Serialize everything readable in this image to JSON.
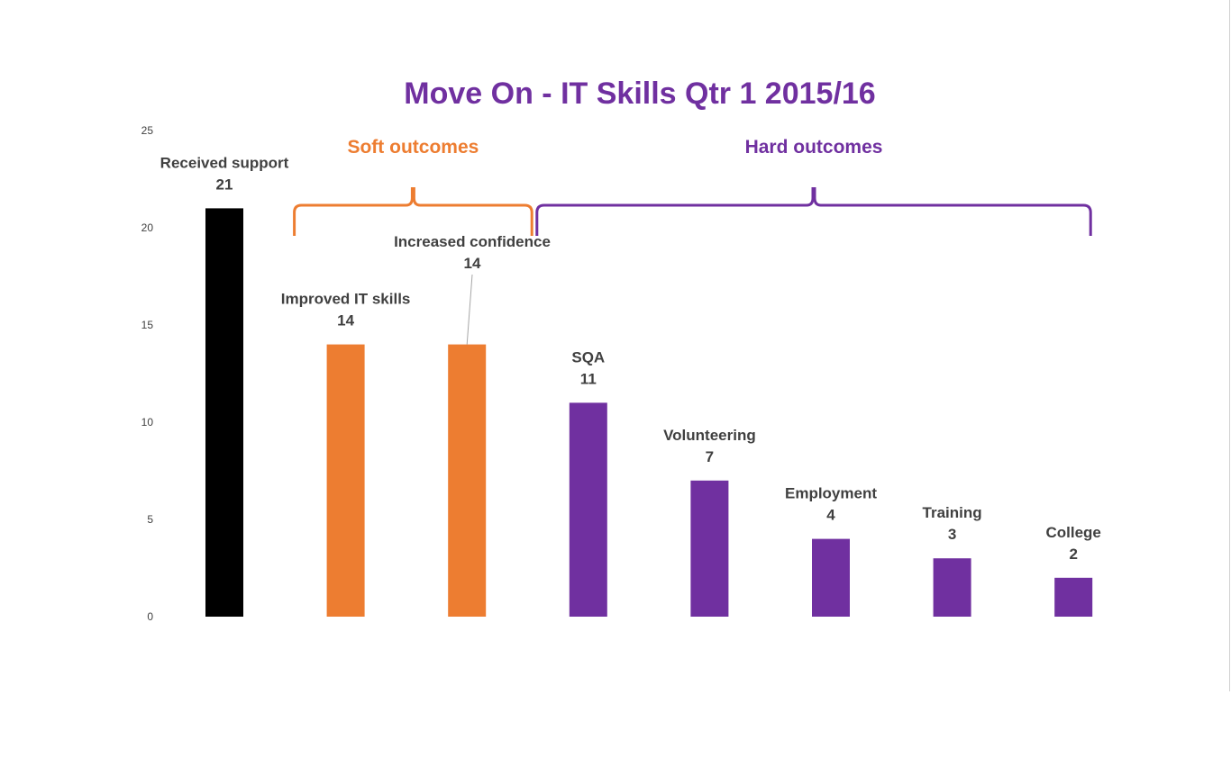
{
  "chart_data": {
    "type": "bar",
    "title": "Move On - IT Skills Qtr 1 2015/16",
    "xlabel": "",
    "ylabel": "",
    "ylim": [
      0,
      25
    ],
    "yticks": [
      0,
      5,
      10,
      15,
      20,
      25
    ],
    "grid": false,
    "legend": "none",
    "categories": [
      "Received support",
      "Improved IT skills",
      "Increased confidence",
      "SQA",
      "Volunteering",
      "Employment",
      "Training",
      "College"
    ],
    "values": [
      21,
      14,
      14,
      11,
      7,
      4,
      3,
      2
    ],
    "bar_colors": [
      "#000000",
      "#ED7D31",
      "#ED7D31",
      "#7030A0",
      "#7030A0",
      "#7030A0",
      "#7030A0",
      "#7030A0"
    ],
    "groups": [
      {
        "label": "Soft outcomes",
        "color": "#ED7D31",
        "start": 1,
        "end": 2
      },
      {
        "label": "Hard outcomes",
        "color": "#7030A0",
        "start": 3,
        "end": 7
      }
    ]
  },
  "colors": {
    "title": "#7030A0",
    "tick_text": "#404040",
    "label_text": "#404040",
    "leader_line": "#a6a6a6"
  }
}
